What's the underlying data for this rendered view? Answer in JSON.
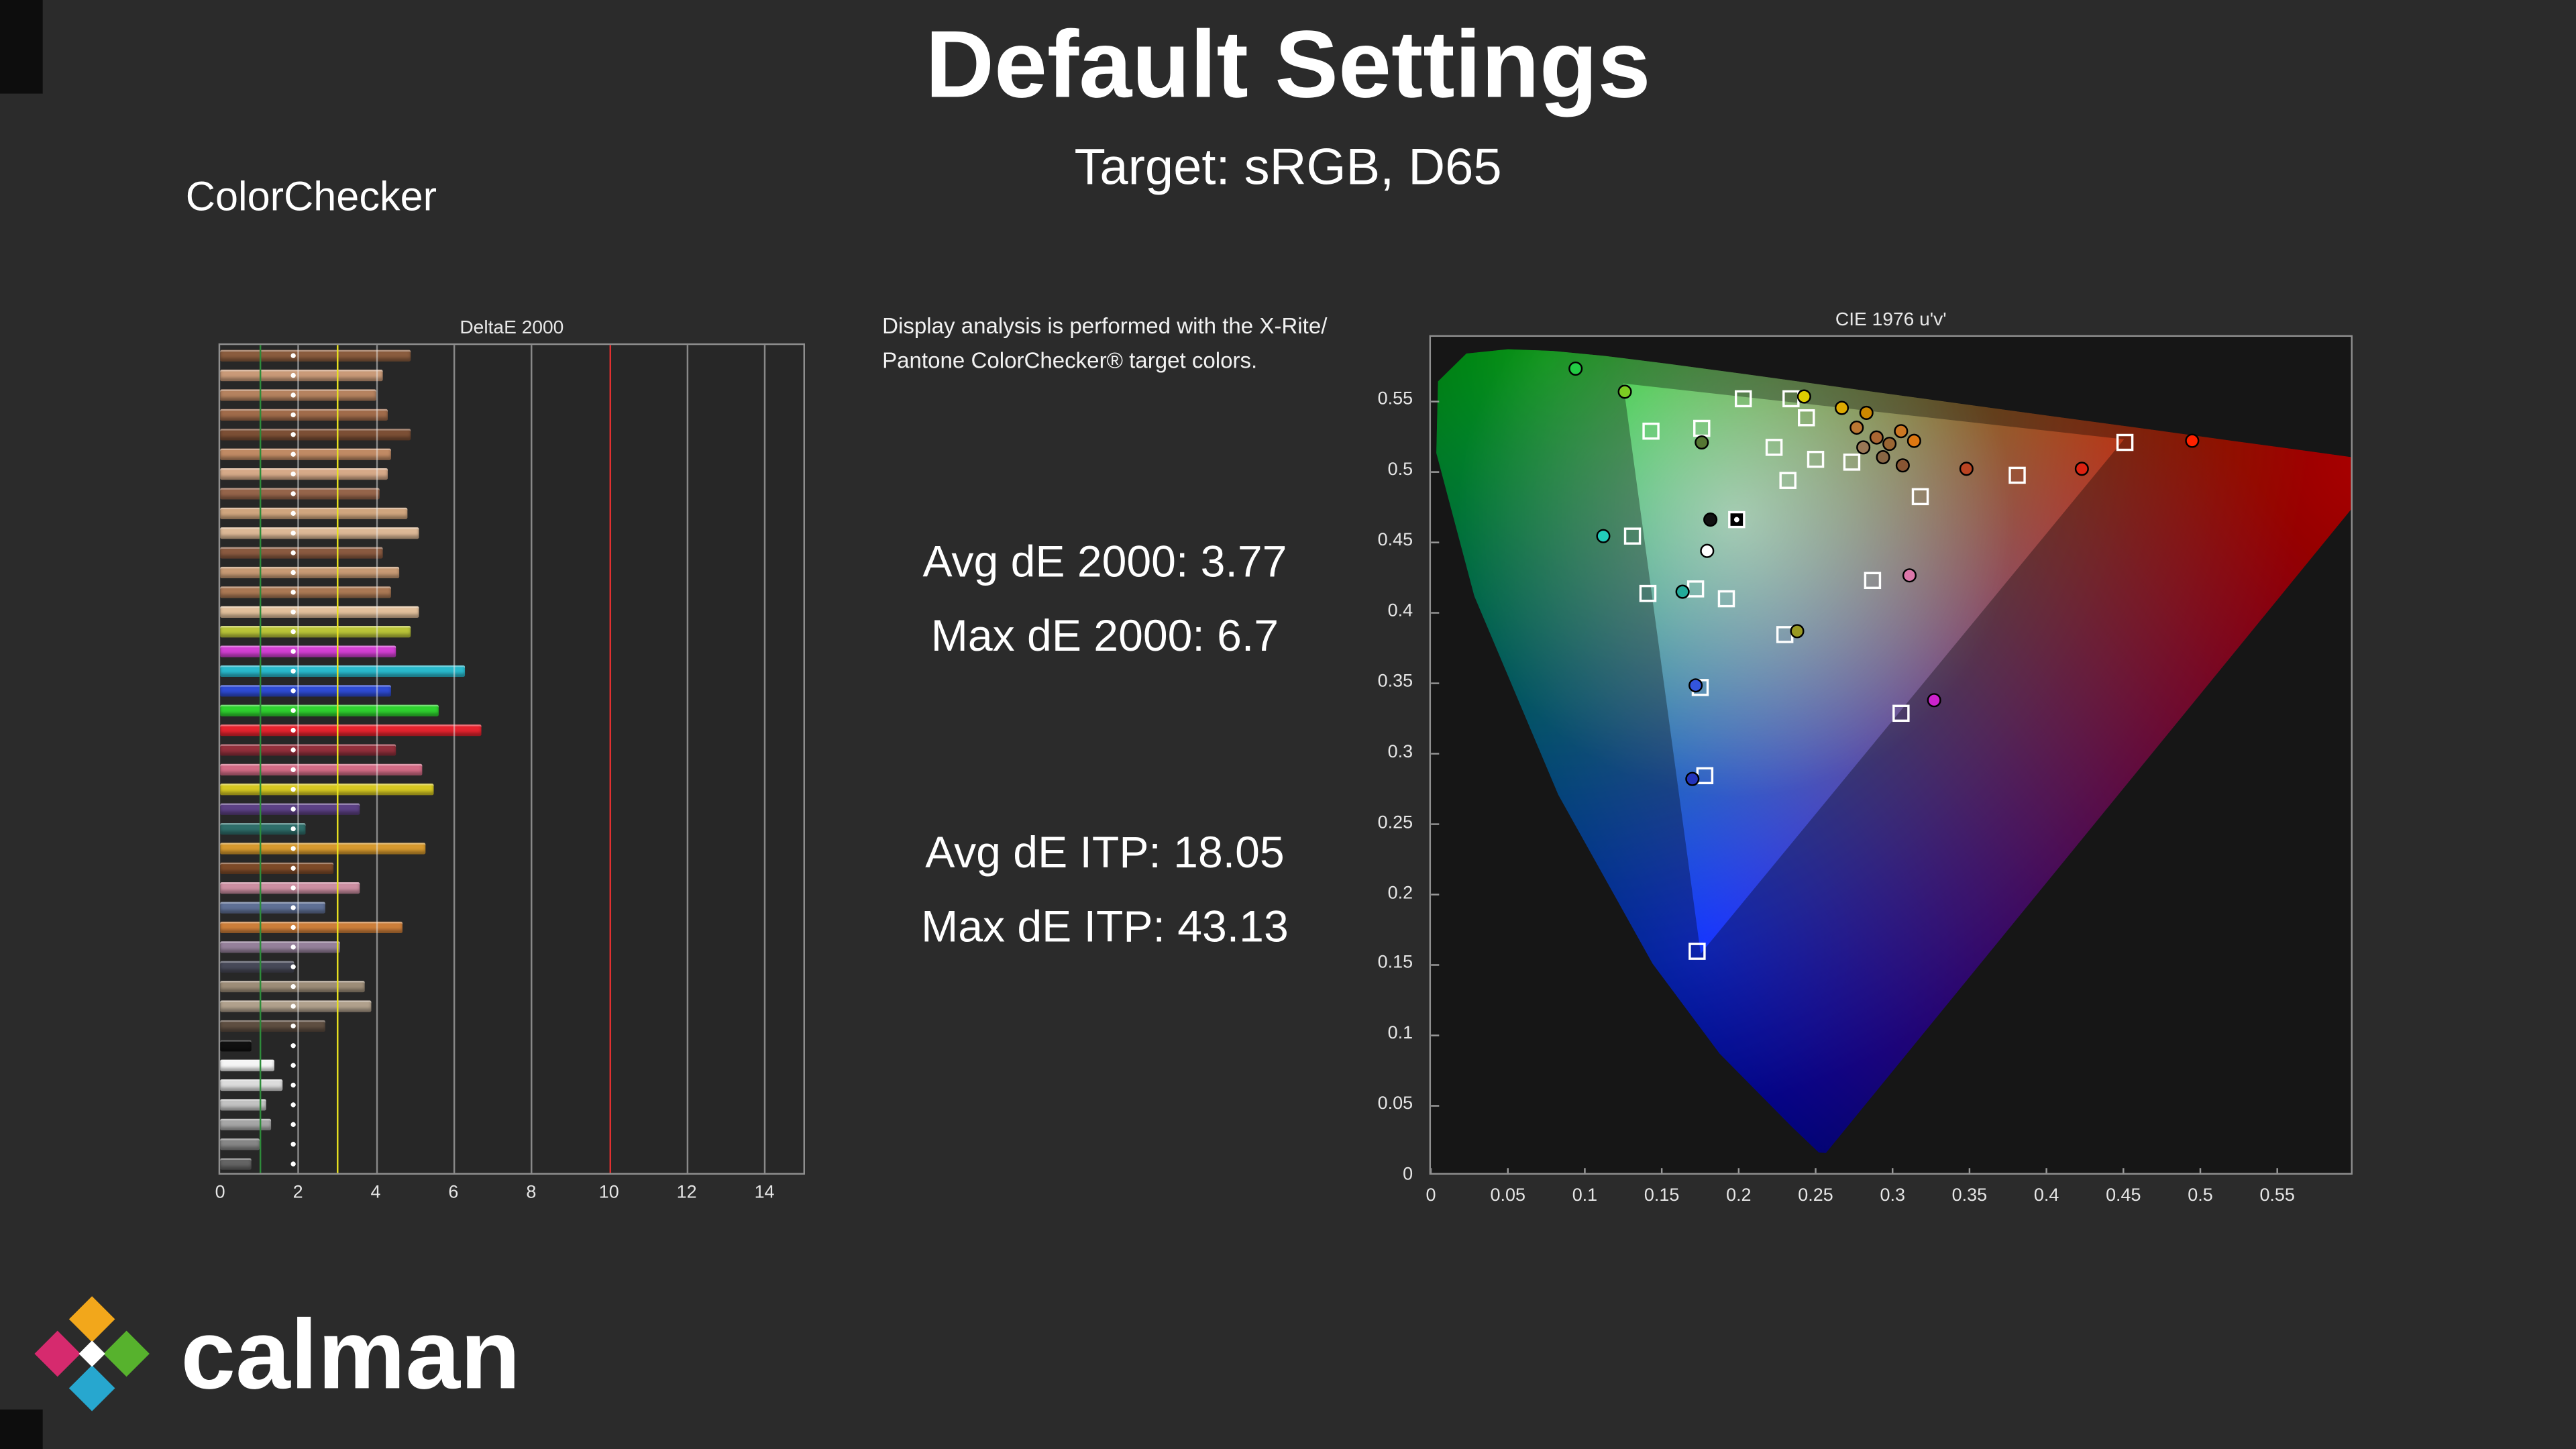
{
  "page": {
    "title": "Default Settings",
    "subtitle": "Target: sRGB, D65",
    "background": "#2b2b2b"
  },
  "colorchecker": {
    "label": "ColorChecker"
  },
  "analysis": {
    "note_line1": "Display analysis is performed with the X-Rite/",
    "note_line2": "Pantone ColorChecker® target colors.",
    "avg_de2000": "Avg dE 2000: 3.77",
    "max_de2000": "Max dE 2000: 6.7",
    "avg_deitp": "Avg dE ITP: 18.05",
    "max_deitp": "Max dE ITP: 43.13"
  },
  "logo": {
    "text": "calman",
    "diamonds": {
      "top": "#f2a71b",
      "left": "#d62a6e",
      "right": "#57b22d",
      "bottom": "#27a7cf",
      "center": "#ffffff"
    }
  },
  "chart_data": [
    {
      "type": "bar",
      "title": "DeltaE 2000",
      "orientation": "horizontal",
      "xlim": [
        0,
        15
      ],
      "x_ticks": [
        0,
        2,
        4,
        6,
        8,
        10,
        12,
        14
      ],
      "grid_ticks": [
        2,
        4,
        6,
        8,
        12,
        14
      ],
      "reference_lines": [
        {
          "value": 1,
          "color": "#2e8b3a"
        },
        {
          "value": 3,
          "color": "#e8e11f"
        },
        {
          "value": 10,
          "color": "#e03030"
        }
      ],
      "marker_x": 1.9,
      "bars": [
        {
          "color": "#8a5c3e",
          "value": 4.9
        },
        {
          "color": "#c99a78",
          "value": 4.2
        },
        {
          "color": "#b5825f",
          "value": 4.0
        },
        {
          "color": "#a06b4a",
          "value": 4.3
        },
        {
          "color": "#7c4f35",
          "value": 4.9
        },
        {
          "color": "#c08a64",
          "value": 4.4
        },
        {
          "color": "#d6a988",
          "value": 4.3
        },
        {
          "color": "#95644a",
          "value": 4.1
        },
        {
          "color": "#cfa57e",
          "value": 4.8
        },
        {
          "color": "#dcb896",
          "value": 5.1
        },
        {
          "color": "#8a5a40",
          "value": 4.2
        },
        {
          "color": "#c79a74",
          "value": 4.6
        },
        {
          "color": "#aa7854",
          "value": 4.4
        },
        {
          "color": "#e2c09c",
          "value": 5.1
        },
        {
          "color": "#b9c438",
          "value": 4.9
        },
        {
          "color": "#d23fd2",
          "value": 4.5
        },
        {
          "color": "#29b9cc",
          "value": 6.3
        },
        {
          "color": "#2e4bd2",
          "value": 4.4
        },
        {
          "color": "#2fd22f",
          "value": 5.6
        },
        {
          "color": "#e6232e",
          "value": 6.7
        },
        {
          "color": "#93303c",
          "value": 4.5
        },
        {
          "color": "#d26b85",
          "value": 5.2
        },
        {
          "color": "#d6c822",
          "value": 5.5
        },
        {
          "color": "#5c4184",
          "value": 3.6
        },
        {
          "color": "#2f6e6a",
          "value": 2.2
        },
        {
          "color": "#d6992e",
          "value": 5.3
        },
        {
          "color": "#7d4a28",
          "value": 2.9
        },
        {
          "color": "#cc8fa2",
          "value": 3.6
        },
        {
          "color": "#5f7095",
          "value": 2.7
        },
        {
          "color": "#cc7e3a",
          "value": 4.7
        },
        {
          "color": "#95809a",
          "value": 3.1
        },
        {
          "color": "#474958",
          "value": 1.9
        },
        {
          "color": "#9d8d78",
          "value": 3.7
        },
        {
          "color": "#b0a08c",
          "value": 3.9
        },
        {
          "color": "#5e4e41",
          "value": 2.7
        },
        {
          "color": "#101010",
          "value": 0.8
        },
        {
          "color": "#f5f5f5",
          "value": 1.4
        },
        {
          "color": "#dcdcdc",
          "value": 1.6
        },
        {
          "color": "#c2c2c2",
          "value": 1.2
        },
        {
          "color": "#a6a6a6",
          "value": 1.3
        },
        {
          "color": "#868686",
          "value": 1.0
        },
        {
          "color": "#646464",
          "value": 0.8
        }
      ]
    },
    {
      "type": "scatter",
      "title": "CIE 1976 u'v'",
      "xlim": [
        0,
        0.6
      ],
      "ylim": [
        0,
        0.596
      ],
      "x_ticks": [
        "0",
        "0.05",
        "0.1",
        "0.15",
        "0.2",
        "0.25",
        "0.3",
        "0.35",
        "0.4",
        "0.45",
        "0.5",
        "0.55"
      ],
      "y_ticks": [
        "0",
        "0.05",
        "0.1",
        "0.15",
        "0.2",
        "0.25",
        "0.3",
        "0.35",
        "0.4",
        "0.45",
        "0.5",
        "0.55"
      ],
      "gamut": "sRGB triangle over CIE 1976 u'v' spectral locus",
      "srgb_triangle": {
        "red": [
          0.4507,
          0.5229
        ],
        "green": [
          0.125,
          0.5625
        ],
        "blue": [
          0.1754,
          0.1579
        ]
      },
      "white_point_target": {
        "u": 0.1987,
        "v": 0.4662
      },
      "targets": [
        [
          0.176,
          0.531
        ],
        [
          0.203,
          0.552
        ],
        [
          0.234,
          0.552
        ],
        [
          0.244,
          0.5385
        ],
        [
          0.223,
          0.5175
        ],
        [
          0.232,
          0.494
        ],
        [
          0.25,
          0.509
        ],
        [
          0.2735,
          0.507
        ],
        [
          0.318,
          0.4825
        ],
        [
          0.381,
          0.4977
        ],
        [
          0.451,
          0.521
        ],
        [
          0.143,
          0.529
        ],
        [
          0.131,
          0.4545
        ],
        [
          0.141,
          0.4138
        ],
        [
          0.172,
          0.417
        ],
        [
          0.192,
          0.41
        ],
        [
          0.287,
          0.423
        ],
        [
          0.23,
          0.3846
        ],
        [
          0.175,
          0.347
        ],
        [
          0.3055,
          0.3287
        ],
        [
          0.178,
          0.2844
        ],
        [
          0.173,
          0.1597
        ]
      ],
      "measurements": [
        {
          "u": 0.094,
          "v": 0.5734,
          "color": "#22cc44"
        },
        {
          "u": 0.126,
          "v": 0.557,
          "color": "#7ccc22"
        },
        {
          "u": 0.176,
          "v": 0.521,
          "color": "#557733"
        },
        {
          "u": 0.2425,
          "v": 0.5536,
          "color": "#ddcc00"
        },
        {
          "u": 0.267,
          "v": 0.5455,
          "color": "#ddaa00"
        },
        {
          "u": 0.283,
          "v": 0.542,
          "color": "#cc8800"
        },
        {
          "u": 0.2767,
          "v": 0.5315,
          "color": "#bb7733"
        },
        {
          "u": 0.2896,
          "v": 0.5245,
          "color": "#aa6633"
        },
        {
          "u": 0.298,
          "v": 0.52,
          "color": "#996633"
        },
        {
          "u": 0.3055,
          "v": 0.529,
          "color": "#cc7722"
        },
        {
          "u": 0.314,
          "v": 0.5221,
          "color": "#dd7711"
        },
        {
          "u": 0.281,
          "v": 0.5175,
          "color": "#997755"
        },
        {
          "u": 0.2938,
          "v": 0.5105,
          "color": "#886644"
        },
        {
          "u": 0.3066,
          "v": 0.5047,
          "color": "#885533"
        },
        {
          "u": 0.348,
          "v": 0.5023,
          "color": "#bb4422"
        },
        {
          "u": 0.423,
          "v": 0.5023,
          "color": "#dd2211"
        },
        {
          "u": 0.4947,
          "v": 0.5222,
          "color": "#ff2200"
        },
        {
          "u": 0.112,
          "v": 0.4545,
          "color": "#22ccbb"
        },
        {
          "u": 0.1635,
          "v": 0.415,
          "color": "#22aa99"
        },
        {
          "u": 0.1795,
          "v": 0.444,
          "color": "#ffffff"
        },
        {
          "u": 0.238,
          "v": 0.387,
          "color": "#999922"
        },
        {
          "u": 0.311,
          "v": 0.4266,
          "color": "#dd77aa"
        },
        {
          "u": 0.327,
          "v": 0.338,
          "color": "#cc22cc"
        },
        {
          "u": 0.172,
          "v": 0.3485,
          "color": "#3355dd"
        },
        {
          "u": 0.1699,
          "v": 0.2821,
          "color": "#2233bb"
        },
        {
          "u": 0.1816,
          "v": 0.4662,
          "color": "#111111"
        }
      ]
    }
  ]
}
